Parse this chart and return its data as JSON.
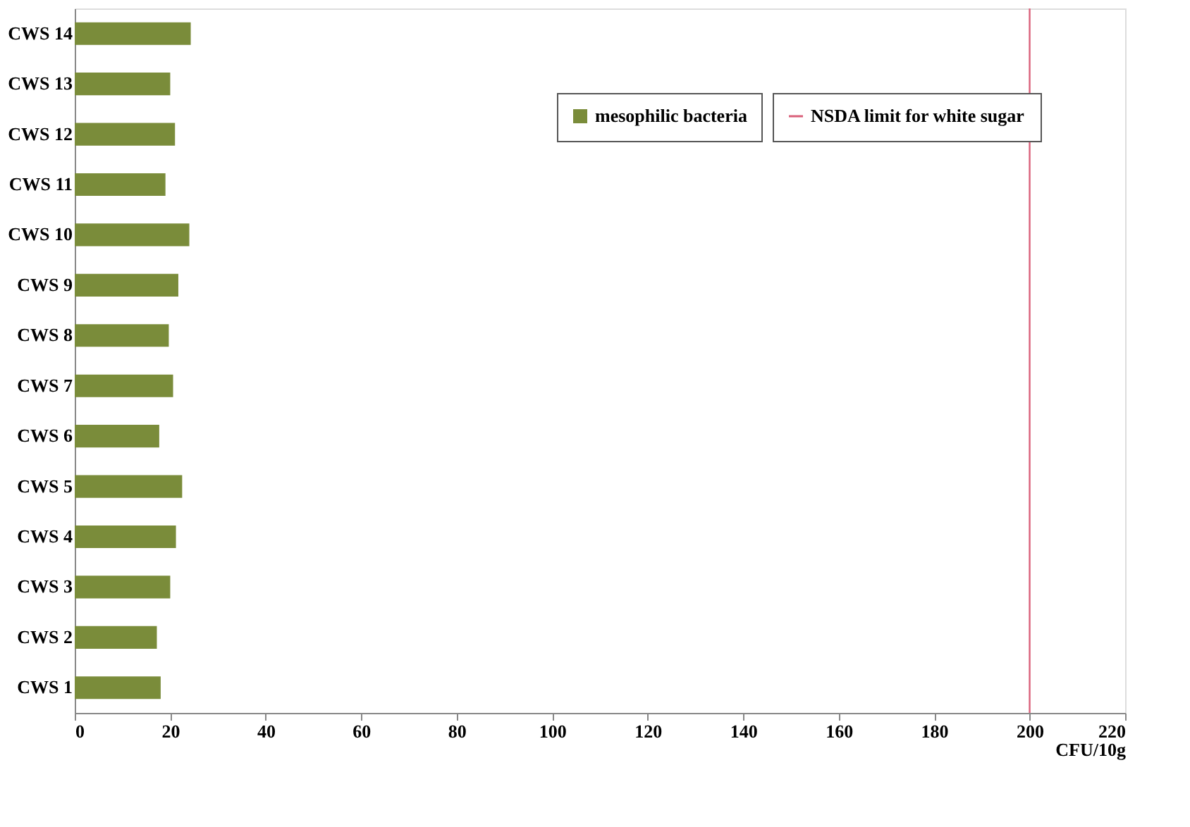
{
  "chart_data": {
    "type": "bar",
    "orientation": "horizontal",
    "xlabel": "CFU/10g",
    "categories": [
      "CWS 14",
      "CWS 13",
      "CWS 12",
      "CWS 11",
      "CWS 10",
      "CWS 9",
      "CWS 8",
      "CWS 7",
      "CWS 6",
      "CWS 5",
      "CWS 4",
      "CWS 3",
      "CWS 2",
      "CWS 1"
    ],
    "series": [
      {
        "name": "mesophilic bacteria",
        "color": "#7a8c3a",
        "values": [
          24.3,
          20,
          21,
          19,
          24,
          21.7,
          19.7,
          20.6,
          17.7,
          22.5,
          21.2,
          20,
          17.2,
          18
        ]
      }
    ],
    "ref_lines": [
      {
        "axis": "x",
        "value": 200,
        "label": "NSDA limit for white sugar",
        "color": "#d9607a"
      }
    ],
    "xlim": [
      0,
      220
    ],
    "xticks": [
      0,
      20,
      40,
      60,
      80,
      100,
      120,
      140,
      160,
      180,
      200,
      220
    ],
    "grid": false,
    "legend": "top right"
  }
}
